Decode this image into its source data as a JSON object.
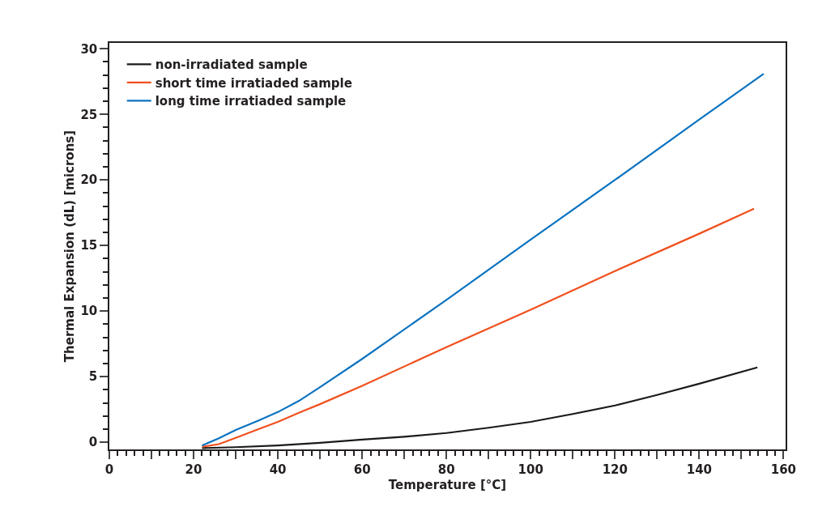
{
  "chart_data": {
    "type": "line",
    "xlabel": "Temperature [°C]",
    "ylabel": "Thermal Expansion (dL) [microns]",
    "xlim": [
      0,
      160.5
    ],
    "ylim": [
      -0.55,
      30.45
    ],
    "xticks": [
      0,
      {
        "value": 10,
        "label": null
      },
      20,
      {
        "value": 30,
        "label": null
      },
      40,
      {
        "value": 50,
        "label": null
      },
      60,
      {
        "value": 70,
        "label": null
      },
      80,
      {
        "value": 90,
        "label": null
      },
      100,
      {
        "value": 110,
        "label": null
      },
      120,
      {
        "value": 130,
        "label": null
      },
      140,
      {
        "value": 150,
        "label": null
      },
      160
    ],
    "yticks": [
      0,
      5,
      10,
      15,
      20,
      25,
      30
    ],
    "legend": "top left",
    "marker": "none",
    "line_style": "solid",
    "series": [
      {
        "name": "non-irradiated sample",
        "color": "#1a1a1a",
        "x": [
          22,
          30,
          40,
          50,
          60,
          70,
          80,
          90,
          100,
          110,
          120,
          130,
          140,
          153.8
        ],
        "values": [
          -0.45,
          -0.38,
          -0.25,
          -0.05,
          0.2,
          0.42,
          0.7,
          1.1,
          1.55,
          2.15,
          2.8,
          3.6,
          4.46,
          5.7
        ]
      },
      {
        "name": "short time irratiaded sample",
        "color": "#f0501e",
        "x": [
          22,
          26,
          30,
          35,
          40,
          45,
          50,
          60,
          80,
          100,
          120,
          140,
          153
        ],
        "values": [
          -0.35,
          -0.15,
          0.33,
          0.95,
          1.55,
          2.25,
          2.9,
          4.3,
          7.25,
          10.1,
          13.05,
          15.9,
          17.8
        ]
      },
      {
        "name": "long time irratiaded sample",
        "color": "#0a72c0",
        "x": [
          22,
          26,
          30,
          35,
          40,
          45,
          50,
          60,
          80,
          100,
          120,
          140,
          155.3
        ],
        "values": [
          -0.25,
          0.3,
          0.93,
          1.6,
          2.3,
          3.15,
          4.2,
          6.35,
          10.85,
          15.45,
          20.0,
          24.6,
          28.1
        ]
      }
    ]
  }
}
